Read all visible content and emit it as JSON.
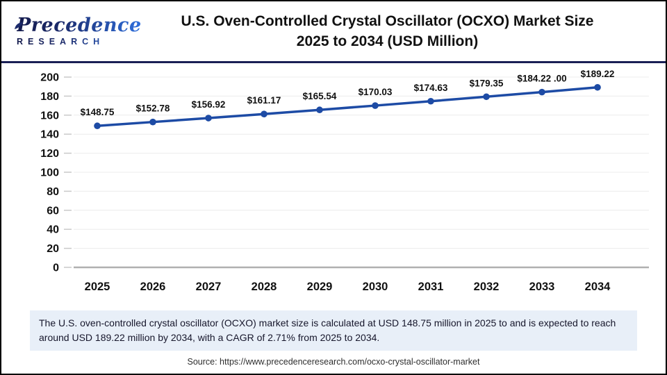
{
  "header": {
    "logo_line1": "Precedence",
    "logo_line2": "RESEARCH",
    "title_line1": "U.S. Oven-Controlled Crystal Oscillator (OCXO) Market Size",
    "title_line2": "2025 to 2034 (USD Million)"
  },
  "chart_data": {
    "type": "line",
    "title": "U.S. Oven-Controlled Crystal Oscillator (OCXO) Market Size 2025 to 2034 (USD Million)",
    "categories": [
      "2025",
      "2026",
      "2027",
      "2028",
      "2029",
      "2030",
      "2031",
      "2032",
      "2033",
      "2034"
    ],
    "values": [
      148.75,
      152.78,
      156.92,
      161.17,
      165.54,
      170.03,
      174.63,
      179.35,
      184.22,
      189.22
    ],
    "point_labels": [
      "$148.75",
      "$152.78",
      "$156.92",
      "$161.17",
      "$165.54",
      "$170.03",
      "$174.63",
      "$179.35",
      "$184.22 .00",
      "$189.22"
    ],
    "xlabel": "",
    "ylabel": "",
    "ylim": [
      0,
      200
    ],
    "ytick_step": 20,
    "grid": true,
    "legend_position": "none",
    "line_color": "#1d4ba5",
    "marker_color": "#1d4ba5"
  },
  "summary": {
    "text": "The U.S. oven-controlled crystal oscillator (OCXO) market size is calculated at USD 148.75 million in 2025 to and is expected to reach around USD 189.22 million by 2034, with a CAGR of 2.71% from 2025 to 2034."
  },
  "source": {
    "text": "Source: https://www.precedenceresearch.com/ocxo-crystal-oscillator-market"
  },
  "colors": {
    "accent_line": "#1d4ba5",
    "separator_navy": "#191f55",
    "logo_navy": "#1b2a6b",
    "logo_blue": "#2f6fdd",
    "summary_bg": "#e8eff8",
    "gridline": "#ececec",
    "axis_baseline": "#b0b0b0",
    "text_dark": "#111111"
  }
}
